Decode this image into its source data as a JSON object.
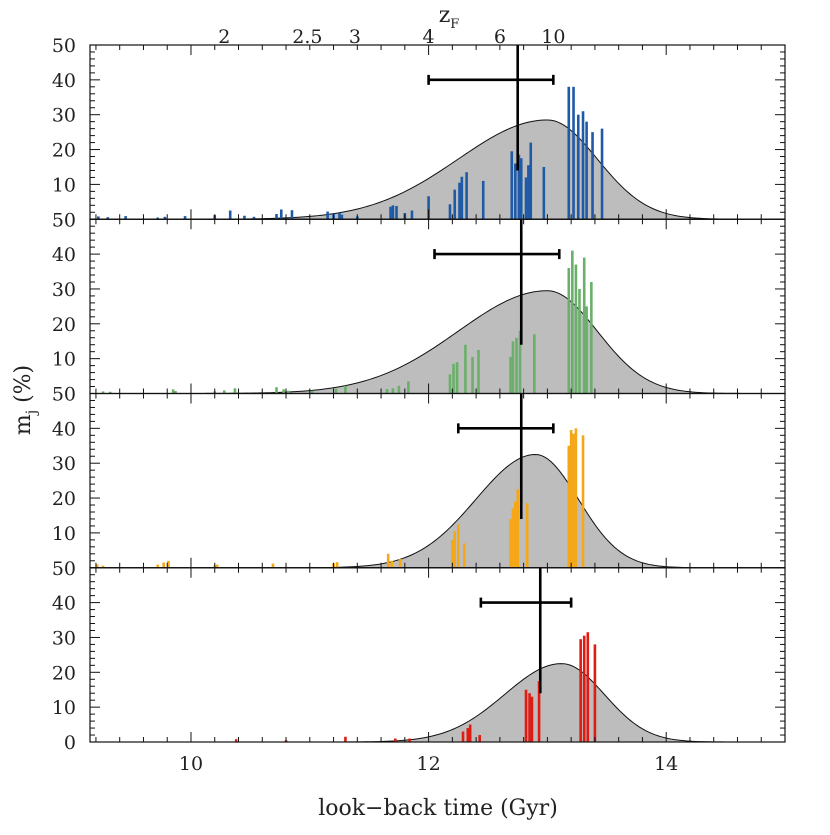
{
  "chart_data": {
    "type": "bar",
    "xlabel": "look−back time (Gyr)",
    "ylabel_main": "m",
    "ylabel_sub": "j",
    "ylabel_tail": " (%)",
    "top_axis": {
      "label_main": "z",
      "label_sub": "F",
      "ticks": [
        {
          "label": "2",
          "x": 10.28
        },
        {
          "label": "2.5",
          "x": 10.98
        },
        {
          "label": "3",
          "x": 11.38
        },
        {
          "label": "4",
          "x": 12.0
        },
        {
          "label": "6",
          "x": 12.6
        },
        {
          "label": "10",
          "x": 13.05
        }
      ]
    },
    "xlim": [
      9.15,
      15.0
    ],
    "x_major_ticks": [
      10,
      12,
      14
    ],
    "ylim": [
      0,
      50
    ],
    "y_tick_labels": [
      "50",
      "10",
      "20",
      "30",
      "40",
      "50"
    ],
    "y_tick_labels_bottom": [
      "0",
      "10",
      "20",
      "30",
      "40",
      "50"
    ],
    "panels": [
      {
        "color": "#1f5aa6",
        "gaussian": {
          "peak_x": 13.0,
          "peak_y": 28.5,
          "sigma_left": 0.75,
          "sigma_right": 0.42
        },
        "marker": {
          "x": 12.75,
          "xerr_low": 12.0,
          "xerr_high": 13.05,
          "y": 40
        },
        "bars": [
          {
            "x": 9.22,
            "y": 0.8
          },
          {
            "x": 9.3,
            "y": 0.6
          },
          {
            "x": 9.45,
            "y": 0.9
          },
          {
            "x": 9.72,
            "y": 0.5
          },
          {
            "x": 9.78,
            "y": 0.7
          },
          {
            "x": 9.95,
            "y": 0.9
          },
          {
            "x": 10.2,
            "y": 1.2
          },
          {
            "x": 10.33,
            "y": 2.5
          },
          {
            "x": 10.45,
            "y": 1.0
          },
          {
            "x": 10.53,
            "y": 0.7
          },
          {
            "x": 10.72,
            "y": 1.5
          },
          {
            "x": 10.76,
            "y": 2.8
          },
          {
            "x": 10.85,
            "y": 2.6
          },
          {
            "x": 11.15,
            "y": 2.2
          },
          {
            "x": 11.2,
            "y": 1.5
          },
          {
            "x": 11.25,
            "y": 1.8
          },
          {
            "x": 11.27,
            "y": 1.3
          },
          {
            "x": 11.4,
            "y": 0.8
          },
          {
            "x": 11.68,
            "y": 3.6
          },
          {
            "x": 11.7,
            "y": 4.0
          },
          {
            "x": 11.73,
            "y": 3.8
          },
          {
            "x": 11.8,
            "y": 1.8
          },
          {
            "x": 11.86,
            "y": 2.5
          },
          {
            "x": 12.0,
            "y": 6.6
          },
          {
            "x": 12.18,
            "y": 4.3
          },
          {
            "x": 12.22,
            "y": 8.5
          },
          {
            "x": 12.26,
            "y": 10.5
          },
          {
            "x": 12.28,
            "y": 12.2
          },
          {
            "x": 12.32,
            "y": 13.5
          },
          {
            "x": 12.46,
            "y": 11.0
          },
          {
            "x": 12.7,
            "y": 19.5
          },
          {
            "x": 12.73,
            "y": 16.0
          },
          {
            "x": 12.76,
            "y": 18.5
          },
          {
            "x": 12.78,
            "y": 17.5
          },
          {
            "x": 12.82,
            "y": 12.0
          },
          {
            "x": 12.84,
            "y": 15.5
          },
          {
            "x": 12.86,
            "y": 22.0
          },
          {
            "x": 12.97,
            "y": 15.0
          },
          {
            "x": 13.18,
            "y": 38.0
          },
          {
            "x": 13.22,
            "y": 38.0
          },
          {
            "x": 13.26,
            "y": 30.0
          },
          {
            "x": 13.3,
            "y": 31.0
          },
          {
            "x": 13.33,
            "y": 28.0
          },
          {
            "x": 13.38,
            "y": 25.0
          },
          {
            "x": 13.46,
            "y": 26.0
          }
        ]
      },
      {
        "color": "#6ab06a",
        "gaussian": {
          "peak_x": 13.0,
          "peak_y": 29.5,
          "sigma_left": 0.75,
          "sigma_right": 0.42
        },
        "marker": {
          "x": 12.78,
          "xerr_low": 12.05,
          "xerr_high": 13.1,
          "y": 40
        },
        "bars": [
          {
            "x": 9.26,
            "y": 0.6
          },
          {
            "x": 9.32,
            "y": 0.5
          },
          {
            "x": 9.85,
            "y": 1.2
          },
          {
            "x": 9.87,
            "y": 0.7
          },
          {
            "x": 10.2,
            "y": 0.6
          },
          {
            "x": 10.28,
            "y": 0.9
          },
          {
            "x": 10.37,
            "y": 1.5
          },
          {
            "x": 10.72,
            "y": 1.8
          },
          {
            "x": 10.78,
            "y": 1.2
          },
          {
            "x": 10.82,
            "y": 0.8
          },
          {
            "x": 11.02,
            "y": 0.8
          },
          {
            "x": 11.22,
            "y": 1.4
          },
          {
            "x": 11.3,
            "y": 2.2
          },
          {
            "x": 11.65,
            "y": 1.3
          },
          {
            "x": 11.7,
            "y": 1.5
          },
          {
            "x": 11.75,
            "y": 2.2
          },
          {
            "x": 11.83,
            "y": 3.5
          },
          {
            "x": 12.18,
            "y": 5.5
          },
          {
            "x": 12.21,
            "y": 8.5
          },
          {
            "x": 12.24,
            "y": 9.0
          },
          {
            "x": 12.31,
            "y": 14.0
          },
          {
            "x": 12.37,
            "y": 10.5
          },
          {
            "x": 12.42,
            "y": 12.5
          },
          {
            "x": 12.69,
            "y": 10.5
          },
          {
            "x": 12.71,
            "y": 15.0
          },
          {
            "x": 12.74,
            "y": 16.0
          },
          {
            "x": 12.77,
            "y": 18.0
          },
          {
            "x": 12.89,
            "y": 17.0
          },
          {
            "x": 13.18,
            "y": 36.0
          },
          {
            "x": 13.21,
            "y": 41.0
          },
          {
            "x": 13.24,
            "y": 37.0
          },
          {
            "x": 13.27,
            "y": 30.0
          },
          {
            "x": 13.31,
            "y": 39.0
          },
          {
            "x": 13.33,
            "y": 25.0
          },
          {
            "x": 13.37,
            "y": 32.0
          }
        ]
      },
      {
        "color": "#f5a716",
        "gaussian": {
          "peak_x": 12.9,
          "peak_y": 32.5,
          "sigma_left": 0.5,
          "sigma_right": 0.36
        },
        "marker": {
          "x": 12.78,
          "xerr_low": 12.25,
          "xerr_high": 13.05,
          "y": 40
        },
        "bars": [
          {
            "x": 9.21,
            "y": 1.0
          },
          {
            "x": 9.26,
            "y": 0.6
          },
          {
            "x": 9.72,
            "y": 0.9
          },
          {
            "x": 9.77,
            "y": 1.5
          },
          {
            "x": 9.81,
            "y": 2.0
          },
          {
            "x": 10.2,
            "y": 0.7
          },
          {
            "x": 10.22,
            "y": 0.9
          },
          {
            "x": 10.69,
            "y": 1.2
          },
          {
            "x": 11.2,
            "y": 1.3
          },
          {
            "x": 11.23,
            "y": 1.6
          },
          {
            "x": 11.66,
            "y": 4.0
          },
          {
            "x": 11.69,
            "y": 2.0
          },
          {
            "x": 11.76,
            "y": 2.5
          },
          {
            "x": 12.2,
            "y": 8.0
          },
          {
            "x": 12.22,
            "y": 10.5
          },
          {
            "x": 12.25,
            "y": 12.5
          },
          {
            "x": 12.3,
            "y": 7.0
          },
          {
            "x": 12.69,
            "y": 14.0
          },
          {
            "x": 12.71,
            "y": 17.0
          },
          {
            "x": 12.73,
            "y": 19.0
          },
          {
            "x": 12.75,
            "y": 22.5
          },
          {
            "x": 12.83,
            "y": 18.5
          },
          {
            "x": 13.18,
            "y": 35.0
          },
          {
            "x": 13.2,
            "y": 39.5
          },
          {
            "x": 13.22,
            "y": 38.5
          },
          {
            "x": 13.24,
            "y": 40.0
          },
          {
            "x": 13.3,
            "y": 38.0
          }
        ]
      },
      {
        "color": "#e01b12",
        "gaussian": {
          "peak_x": 13.12,
          "peak_y": 22.5,
          "sigma_left": 0.48,
          "sigma_right": 0.36
        },
        "marker": {
          "x": 12.94,
          "xerr_low": 12.44,
          "xerr_high": 13.2,
          "y": 40
        },
        "bars": [
          {
            "x": 10.38,
            "y": 0.8
          },
          {
            "x": 10.8,
            "y": 0.5
          },
          {
            "x": 11.3,
            "y": 1.5
          },
          {
            "x": 11.72,
            "y": 1.0
          },
          {
            "x": 11.84,
            "y": 1.0
          },
          {
            "x": 12.29,
            "y": 3.0
          },
          {
            "x": 12.33,
            "y": 4.0
          },
          {
            "x": 12.35,
            "y": 5.0
          },
          {
            "x": 12.43,
            "y": 2.0
          },
          {
            "x": 12.82,
            "y": 15.0
          },
          {
            "x": 12.85,
            "y": 14.0
          },
          {
            "x": 12.87,
            "y": 13.0
          },
          {
            "x": 12.93,
            "y": 17.5
          },
          {
            "x": 13.28,
            "y": 29.5
          },
          {
            "x": 13.31,
            "y": 30.5
          },
          {
            "x": 13.34,
            "y": 31.5
          },
          {
            "x": 13.4,
            "y": 28.0
          }
        ]
      }
    ]
  }
}
